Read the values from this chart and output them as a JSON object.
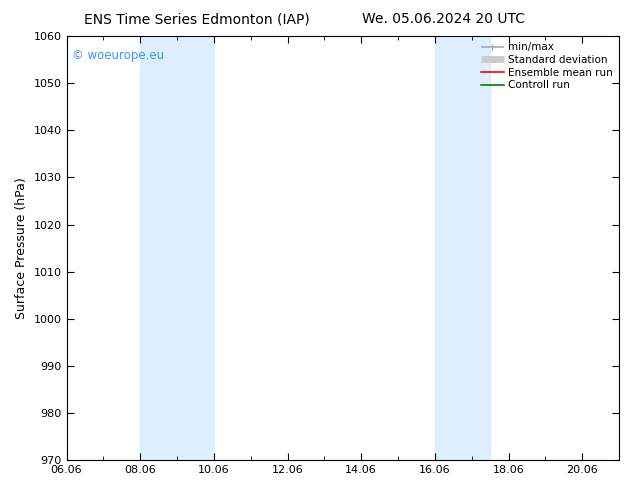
{
  "title_left": "ENS Time Series Edmonton (IAP)",
  "title_right": "We. 05.06.2024 20 UTC",
  "ylabel": "Surface Pressure (hPa)",
  "ylim": [
    970,
    1060
  ],
  "yticks": [
    970,
    980,
    990,
    1000,
    1010,
    1020,
    1030,
    1040,
    1050,
    1060
  ],
  "xlim_start": 0,
  "xlim_end": 15,
  "xtick_labels": [
    "06.06",
    "08.06",
    "10.06",
    "12.06",
    "14.06",
    "16.06",
    "18.06",
    "20.06"
  ],
  "xtick_positions": [
    0,
    2,
    4,
    6,
    8,
    10,
    12,
    14
  ],
  "shaded_bands": [
    {
      "x_start": 2.0,
      "x_end": 2.5
    },
    {
      "x_start": 2.5,
      "x_end": 4.0
    },
    {
      "x_start": 10.0,
      "x_end": 10.5
    },
    {
      "x_start": 10.5,
      "x_end": 11.5
    }
  ],
  "shade_color": "#ddeeff",
  "watermark_text": "© woeurope.eu",
  "watermark_color": "#3399ff",
  "legend_items": [
    {
      "label": "min/max",
      "color": "#aaaaaa",
      "lw": 1.2
    },
    {
      "label": "Standard deviation",
      "color": "#cccccc",
      "lw": 5
    },
    {
      "label": "Ensemble mean run",
      "color": "red",
      "lw": 1.2
    },
    {
      "label": "Controll run",
      "color": "green",
      "lw": 1.2
    }
  ],
  "bg_color": "#ffffff",
  "title_fontsize": 10,
  "ylabel_fontsize": 9,
  "tick_fontsize": 8,
  "legend_fontsize": 7.5,
  "watermark_fontsize": 8.5
}
